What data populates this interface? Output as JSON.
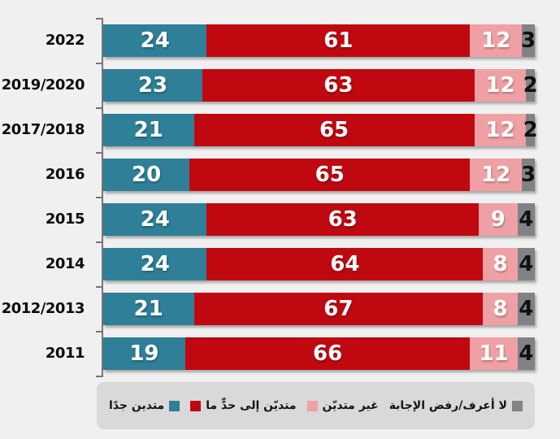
{
  "chart_data": {
    "type": "bar",
    "orientation": "horizontal",
    "stacked": true,
    "value_unit": "percent",
    "xlim": [
      0,
      100
    ],
    "grid": false,
    "title": "",
    "legend_position": "bottom",
    "categories": [
      "2022",
      "2019/2020",
      "2017/2018",
      "2016",
      "2015",
      "2014",
      "2012/2013",
      "2011"
    ],
    "series": [
      {
        "key": "very-religious",
        "name": "متدين جدًا",
        "color": "#2e7f97",
        "label_color": "#ffffff",
        "values": [
          24,
          23,
          21,
          20,
          24,
          24,
          21,
          19
        ]
      },
      {
        "key": "somewhat-religious",
        "name": "متديّن إلى حدٍّ ما",
        "color": "#c00811",
        "label_color": "#ffffff",
        "values": [
          61,
          63,
          65,
          65,
          63,
          64,
          67,
          66
        ]
      },
      {
        "key": "not-religious",
        "name": "غير متديّن",
        "color": "#efa0a5",
        "label_color": "#ffffff",
        "values": [
          12,
          12,
          12,
          12,
          9,
          8,
          8,
          11
        ]
      },
      {
        "key": "dont-know-refused",
        "name": "لا أعرف/رفض الإجابة",
        "color": "#808285",
        "label_color": "#111111",
        "values": [
          3,
          2,
          2,
          3,
          4,
          4,
          4,
          4
        ]
      }
    ],
    "legend_swatch_after_text": [
      "very-religious",
      "dont-know-refused"
    ]
  },
  "colors": {
    "background": "#f0f0f0",
    "legend_background": "#d9d9d9",
    "axis": "#757575"
  },
  "layout_values": {
    "row_count": 8,
    "tick_count": 9
  }
}
